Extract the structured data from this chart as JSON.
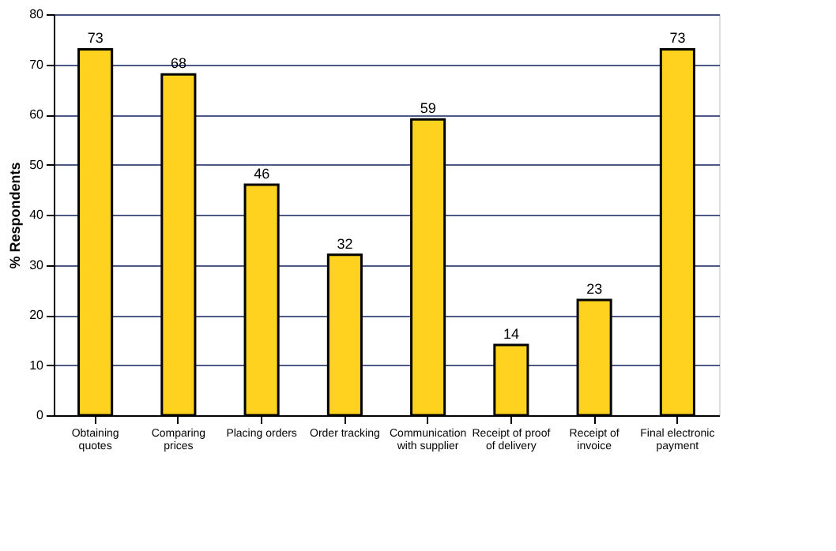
{
  "chart_data": {
    "type": "bar",
    "ylabel": "% Respondents",
    "categories": [
      "Obtaining quotes",
      "Comparing prices",
      "Placing orders",
      "Order tracking",
      "Communication with supplier",
      "Receipt of proof of delivery",
      "Receipt of invoice",
      "Final electronic payment"
    ],
    "values": [
      73,
      68,
      46,
      32,
      59,
      14,
      23,
      73
    ],
    "color": "#ffd21f",
    "ylim": [
      0,
      80
    ],
    "yticks": [
      0,
      10,
      20,
      30,
      40,
      50,
      60,
      70,
      80
    ],
    "grid": "y",
    "data_labels": true
  }
}
